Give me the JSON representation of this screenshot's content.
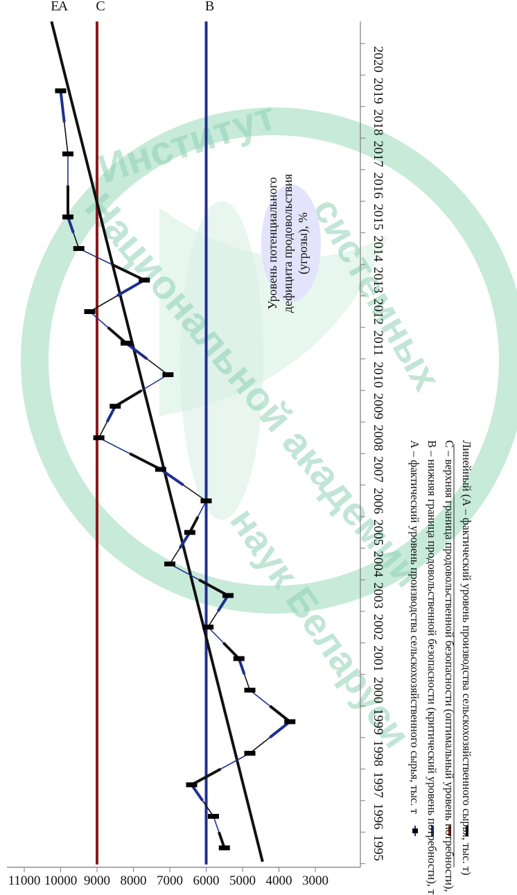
{
  "chart_data": {
    "type": "line",
    "orientation": "rotated-90-clockwise",
    "x": [
      "1995",
      "1996",
      "1997",
      "1998",
      "1999",
      "2000",
      "2001",
      "2002",
      "2003",
      "2004",
      "2005",
      "2006",
      "2007",
      "2008",
      "2009",
      "2010",
      "2011",
      "2012",
      "2013",
      "2014",
      "2015",
      "2016",
      "2017",
      "2018",
      "2019",
      "2020"
    ],
    "yticks": [
      "3000",
      "4000",
      "5000",
      "6000",
      "7000",
      "8000",
      "9000",
      "10000",
      "11000"
    ],
    "ylim": [
      3000,
      11000
    ],
    "grid": false,
    "legend_position": "bottom",
    "series": [
      {
        "key": "A",
        "name": "А – фактический уровень производства сельскохозяйственного сырья, тыс. т",
        "color": "#1a1a1a",
        "values": [
          5500,
          5800,
          6400,
          4800,
          3700,
          4800,
          5100,
          5950,
          5400,
          7000,
          6450,
          6000,
          7250,
          8950,
          8500,
          7050,
          8200,
          9200,
          7700,
          9500,
          9800,
          null,
          9800,
          null,
          10000,
          null
        ]
      },
      {
        "key": "B",
        "name": "B – нижняя граница продовольственной безопасности (критический уровень потребности), тыс. т",
        "color": "#1f2f8f",
        "constant": 6000
      },
      {
        "key": "C",
        "name": "С – верхняя граница продовольственной безопасности (оптимальный уровень потребности), тыс. т",
        "color": "#8b1a1a",
        "constant": 9000
      },
      {
        "key": "E",
        "name": "Линейный (А – фактический уровень производства сельскохозяйственного сырья, тыс. т)",
        "color": "#111111",
        "start": 4450,
        "end": 10250
      }
    ],
    "line_letters": [
      "Е",
      "А",
      "С",
      "В"
    ],
    "annotation": "Уровень потенциального дефицита продовольствия (угрозы), %"
  },
  "watermark": [
    "Институт",
    "системных",
    "Национальной академии",
    "наук Беларуси"
  ]
}
